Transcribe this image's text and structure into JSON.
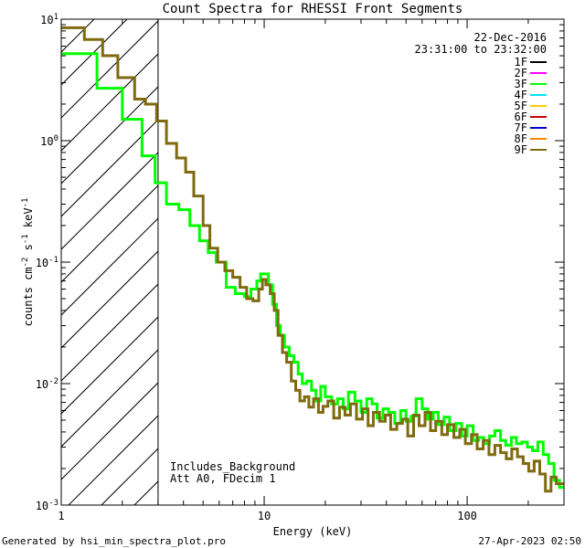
{
  "chart_data": {
    "type": "line",
    "title": "Count Spectra for RHESSI Front Segments",
    "xlabel": "Energy (keV)",
    "ylabel": {
      "base": "counts cm",
      "sup1": "-2",
      "mid1": " s",
      "sup2": "-1",
      "mid2": " keV",
      "sup3": "-1"
    },
    "xscale": "log",
    "yscale": "log",
    "xlim": [
      1,
      300
    ],
    "ylim": [
      0.001,
      10
    ],
    "xticks": [
      {
        "value": 1,
        "label": "1"
      },
      {
        "value": 10,
        "label": "10"
      },
      {
        "value": 100,
        "label": "100"
      }
    ],
    "yticks": [
      {
        "value": 0.001,
        "base": "10",
        "exp": "-3"
      },
      {
        "value": 0.01,
        "base": "10",
        "exp": "-2"
      },
      {
        "value": 0.1,
        "base": "10",
        "exp": "-1"
      },
      {
        "value": 1,
        "base": "10",
        "exp": "0"
      },
      {
        "value": 10,
        "base": "10",
        "exp": "1"
      }
    ],
    "shaded_region": {
      "x_from": 1,
      "x_to": 3,
      "description": "hatched low-energy region"
    },
    "date": "22-Dec-2016",
    "time_range": "23:31:00 to 23:32:00",
    "annotations": [
      "Includes_Background",
      "Att A0, FDecim 1"
    ],
    "legend": [
      {
        "name": "1F",
        "color": "#000000"
      },
      {
        "name": "2F",
        "color": "#ff00ff"
      },
      {
        "name": "3F",
        "color": "#00ff00"
      },
      {
        "name": "4F",
        "color": "#00e5ff"
      },
      {
        "name": "5F",
        "color": "#ffcc00"
      },
      {
        "name": "6F",
        "color": "#cc0000"
      },
      {
        "name": "7F",
        "color": "#0000cc"
      },
      {
        "name": "8F",
        "color": "#ff7f00"
      },
      {
        "name": "9F",
        "color": "#7f6a10"
      }
    ],
    "series": [
      {
        "name": "3F",
        "color": "#00ff00",
        "x": [
          1.0,
          1.5,
          2.0,
          2.5,
          2.9,
          3.3,
          3.8,
          4.3,
          4.8,
          5.3,
          5.8,
          6.5,
          7.2,
          8.0,
          8.6,
          9.2,
          9.6,
          10.0,
          10.5,
          11.0,
          11.5,
          12.0,
          12.6,
          13.3,
          14.0,
          14.7,
          15.4,
          16.2,
          17.1,
          18.0,
          19.0,
          20.0,
          21.5,
          23.0,
          24.5,
          26.0,
          28.0,
          30.0,
          32.0,
          34.0,
          36.0,
          38.5,
          41.0,
          44.0,
          47.0,
          50.0,
          53.0,
          56.0,
          60.0,
          64.0,
          68.0,
          72.0,
          77.0,
          82.0,
          88.0,
          94.0,
          100.0,
          107.0,
          114.0,
          121.0,
          129.0,
          137.0,
          146.0,
          155.0,
          165.0,
          175.0,
          186.0,
          198.0,
          210.0,
          223.0,
          237.0,
          252.0,
          268.0,
          285.0
        ],
        "y": [
          5.2,
          2.7,
          1.5,
          0.75,
          0.45,
          0.3,
          0.27,
          0.2,
          0.15,
          0.12,
          0.1,
          0.062,
          0.055,
          0.052,
          0.06,
          0.07,
          0.08,
          0.08,
          0.065,
          0.045,
          0.03,
          0.025,
          0.02,
          0.017,
          0.015,
          0.012,
          0.01,
          0.0105,
          0.0088,
          0.0072,
          0.0095,
          0.0078,
          0.0068,
          0.0075,
          0.0062,
          0.0085,
          0.0072,
          0.0058,
          0.0075,
          0.0068,
          0.0052,
          0.0062,
          0.0058,
          0.0047,
          0.006,
          0.0049,
          0.0054,
          0.0075,
          0.0062,
          0.0051,
          0.0058,
          0.0046,
          0.0053,
          0.0041,
          0.0047,
          0.0037,
          0.0045,
          0.0034,
          0.0036,
          0.0032,
          0.0037,
          0.0041,
          0.0034,
          0.0031,
          0.0036,
          0.0032,
          0.0033,
          0.003,
          0.0028,
          0.0033,
          0.0026,
          0.0022,
          0.0016,
          0.0014
        ]
      },
      {
        "name": "9F",
        "color": "#7f6a10",
        "x": [
          1.0,
          1.3,
          1.6,
          1.9,
          2.3,
          2.6,
          2.95,
          3.3,
          3.7,
          4.1,
          4.5,
          5.0,
          5.4,
          5.9,
          6.4,
          7.0,
          7.6,
          8.2,
          8.8,
          9.4,
          9.8,
          10.2,
          10.7,
          11.2,
          11.7,
          12.3,
          12.9,
          13.6,
          14.3,
          15.0,
          15.8,
          16.6,
          17.5,
          18.5,
          19.5,
          20.6,
          22.0,
          23.5,
          25.0,
          26.6,
          28.5,
          30.5,
          32.5,
          34.5,
          37.0,
          39.5,
          42.0,
          45.0,
          48.0,
          51.0,
          54.5,
          58.0,
          62.0,
          66.0,
          70.0,
          75.0,
          80.0,
          86.0,
          92.0,
          98.0,
          105.0,
          112.0,
          120.0,
          128.0,
          137.0,
          146.0,
          156.0,
          166.0,
          177.0,
          189.0,
          201.0,
          214.0,
          228.0,
          243.0,
          259.0,
          275.0
        ],
        "y": [
          8.5,
          6.8,
          5.0,
          3.3,
          2.2,
          2.0,
          1.45,
          0.95,
          0.72,
          0.55,
          0.35,
          0.2,
          0.13,
          0.1,
          0.085,
          0.075,
          0.062,
          0.05,
          0.048,
          0.06,
          0.072,
          0.065,
          0.055,
          0.04,
          0.025,
          0.018,
          0.015,
          0.0105,
          0.0088,
          0.0072,
          0.0078,
          0.0064,
          0.0075,
          0.0058,
          0.0065,
          0.0072,
          0.0052,
          0.0064,
          0.0055,
          0.0068,
          0.0051,
          0.0062,
          0.0045,
          0.0058,
          0.0049,
          0.0055,
          0.0042,
          0.0047,
          0.0051,
          0.0037,
          0.0055,
          0.0045,
          0.0058,
          0.0041,
          0.0049,
          0.0038,
          0.0046,
          0.0036,
          0.0042,
          0.0032,
          0.0038,
          0.0029,
          0.0034,
          0.0026,
          0.0031,
          0.0027,
          0.0024,
          0.0029,
          0.0025,
          0.0022,
          0.0019,
          0.0023,
          0.0018,
          0.0013,
          0.0017,
          0.0015
        ]
      }
    ]
  },
  "footer": {
    "generated_by": "Generated by hsi_min_spectra_plot.pro",
    "timestamp": "27-Apr-2023 02:50"
  }
}
